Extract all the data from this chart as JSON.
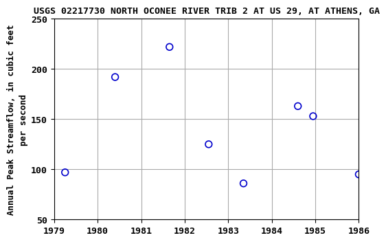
{
  "title": "USGS 02217730 NORTH OCONEE RIVER TRIB 2 AT US 29, AT ATHENS, GA",
  "ylabel_line1": "Annual Peak Streamflow, in cubic feet",
  "ylabel_line2": "per second",
  "years": [
    1979.25,
    1980.4,
    1981.65,
    1982.55,
    1983.35,
    1984.6,
    1984.95,
    1986.0
  ],
  "values": [
    97,
    192,
    222,
    125,
    86,
    163,
    153,
    95
  ],
  "xlim": [
    1979,
    1986
  ],
  "ylim": [
    50,
    250
  ],
  "xticks": [
    1979,
    1980,
    1981,
    1982,
    1983,
    1984,
    1985,
    1986
  ],
  "yticks": [
    50,
    100,
    150,
    200,
    250
  ],
  "marker_color": "#0000cc",
  "marker_facecolor": "none",
  "marker_size": 7,
  "marker_linewidth": 1.2,
  "grid_color": "#aaaaaa",
  "bg_color": "#ffffff",
  "title_fontsize": 9.5,
  "label_fontsize": 9,
  "tick_fontsize": 9.5
}
